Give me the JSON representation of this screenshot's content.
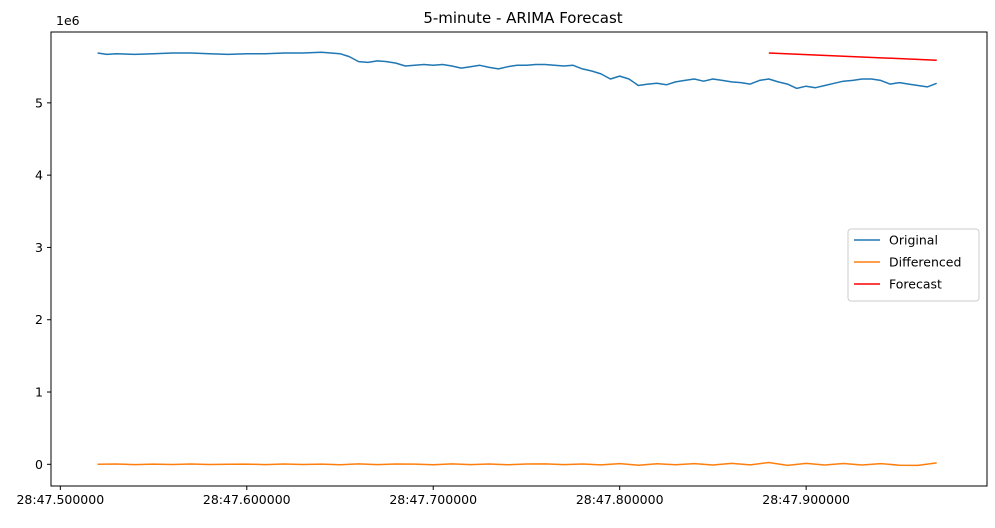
{
  "chart_data": {
    "type": "line",
    "title": "5-minute - ARIMA Forecast",
    "xlabel": "",
    "ylabel": "",
    "y_offset_label": "1e6",
    "xlim": [
      28.495,
      28.997
    ],
    "ylim": [
      -0.3,
      5.98
    ],
    "x_ticks": [
      {
        "value": 28.5,
        "label": "28:47.500000"
      },
      {
        "value": 28.6,
        "label": "28:47.600000"
      },
      {
        "value": 28.7,
        "label": "28:47.700000"
      },
      {
        "value": 28.8,
        "label": "28:47.800000"
      },
      {
        "value": 28.9,
        "label": "28:47.900000"
      }
    ],
    "y_ticks": [
      {
        "value": 0,
        "label": "0"
      },
      {
        "value": 1,
        "label": "1"
      },
      {
        "value": 2,
        "label": "2"
      },
      {
        "value": 3,
        "label": "3"
      },
      {
        "value": 4,
        "label": "4"
      },
      {
        "value": 5,
        "label": "5"
      }
    ],
    "legend_position": "center-right",
    "grid": false,
    "series": [
      {
        "name": "Original",
        "color": "#1f77b4",
        "x": [
          28.52,
          28.525,
          28.53,
          28.54,
          28.55,
          28.56,
          28.57,
          28.58,
          28.59,
          28.6,
          28.61,
          28.62,
          28.63,
          28.64,
          28.645,
          28.65,
          28.655,
          28.66,
          28.665,
          28.67,
          28.675,
          28.68,
          28.685,
          28.69,
          28.695,
          28.7,
          28.705,
          28.71,
          28.715,
          28.72,
          28.725,
          28.73,
          28.735,
          28.74,
          28.745,
          28.75,
          28.755,
          28.76,
          28.765,
          28.77,
          28.775,
          28.78,
          28.785,
          28.79,
          28.795,
          28.8,
          28.805,
          28.81,
          28.815,
          28.82,
          28.825,
          28.83,
          28.835,
          28.84,
          28.845,
          28.85,
          28.855,
          28.86,
          28.865,
          28.87,
          28.875,
          28.88,
          28.885,
          28.89,
          28.895,
          28.9,
          28.905,
          28.91,
          28.915,
          28.92,
          28.925,
          28.93,
          28.935,
          28.94,
          28.945,
          28.95,
          28.955,
          28.96,
          28.965,
          28.97
        ],
        "y": [
          5.69,
          5.67,
          5.68,
          5.67,
          5.68,
          5.69,
          5.69,
          5.68,
          5.67,
          5.68,
          5.68,
          5.69,
          5.69,
          5.7,
          5.69,
          5.68,
          5.64,
          5.57,
          5.56,
          5.58,
          5.57,
          5.55,
          5.51,
          5.52,
          5.53,
          5.52,
          5.53,
          5.51,
          5.48,
          5.5,
          5.52,
          5.49,
          5.47,
          5.5,
          5.52,
          5.52,
          5.53,
          5.53,
          5.52,
          5.51,
          5.52,
          5.47,
          5.44,
          5.4,
          5.33,
          5.37,
          5.33,
          5.24,
          5.26,
          5.27,
          5.25,
          5.29,
          5.31,
          5.33,
          5.3,
          5.33,
          5.31,
          5.29,
          5.28,
          5.26,
          5.31,
          5.33,
          5.29,
          5.26,
          5.2,
          5.23,
          5.21,
          5.24,
          5.27,
          5.3,
          5.31,
          5.33,
          5.33,
          5.31,
          5.26,
          5.28,
          5.26,
          5.24,
          5.22,
          5.27
        ]
      },
      {
        "name": "Differenced",
        "color": "#ff7f0e",
        "x": [
          28.52,
          28.53,
          28.54,
          28.55,
          28.56,
          28.57,
          28.58,
          28.59,
          28.6,
          28.61,
          28.62,
          28.63,
          28.64,
          28.65,
          28.66,
          28.67,
          28.68,
          28.69,
          28.7,
          28.71,
          28.72,
          28.73,
          28.74,
          28.75,
          28.76,
          28.77,
          28.78,
          28.79,
          28.8,
          28.81,
          28.82,
          28.83,
          28.84,
          28.85,
          28.86,
          28.87,
          28.88,
          28.89,
          28.9,
          28.91,
          28.92,
          28.93,
          28.94,
          28.95,
          28.96,
          28.97
        ],
        "y": [
          0.0,
          0.005,
          -0.004,
          0.003,
          -0.002,
          0.004,
          -0.003,
          0.002,
          0.003,
          -0.004,
          0.004,
          -0.002,
          0.003,
          -0.005,
          0.006,
          -0.004,
          0.005,
          0.003,
          -0.005,
          0.006,
          -0.004,
          0.004,
          -0.005,
          0.005,
          0.006,
          -0.004,
          0.005,
          -0.008,
          0.01,
          -0.012,
          0.009,
          -0.007,
          0.01,
          -0.01,
          0.012,
          -0.008,
          0.025,
          -0.015,
          0.012,
          -0.01,
          0.011,
          -0.009,
          0.01,
          -0.012,
          -0.015,
          0.02
        ]
      },
      {
        "name": "Forecast",
        "color": "#ff0000",
        "x": [
          28.88,
          28.97
        ],
        "y": [
          5.69,
          5.59
        ]
      }
    ]
  }
}
